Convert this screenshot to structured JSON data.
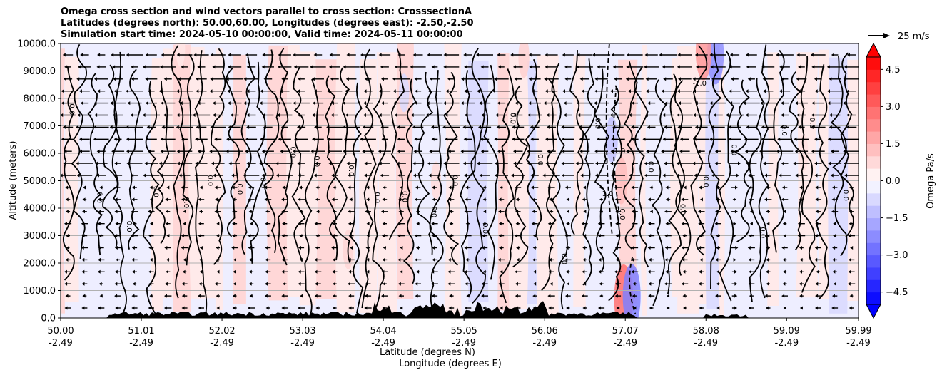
{
  "chart_data": {
    "type": "heatmap",
    "title_lines": [
      "Omega cross section and wind vectors parallel to cross section: CrosssectionA",
      "Latitudes (degrees north): 50.00,60.00, Longitudes (degrees east): -2.50,-2.50",
      "Simulation start time: 2024-05-10 00:00:00, Valid time: 2024-05-11 00:00:00"
    ],
    "ylabel": "Altitude (meters)",
    "xlabel_lat": "Latitude (degrees N)",
    "xlabel_lon": "Longitude (degrees E)",
    "ylim": [
      0,
      10000
    ],
    "y_ticks": [
      0,
      1000,
      2000,
      3000,
      4000,
      5000,
      6000,
      7000,
      8000,
      9000,
      10000
    ],
    "y_tick_labels": [
      "0.0",
      "1000.0",
      "2000.0",
      "3000.0",
      "4000.0",
      "5000.0",
      "6000.0",
      "7000.0",
      "8000.0",
      "9000.0",
      "10000.0"
    ],
    "xlim": [
      50.0,
      59.99
    ],
    "x_ticks": [
      50.0,
      51.01,
      52.02,
      53.03,
      54.04,
      55.05,
      56.06,
      57.07,
      58.08,
      59.09,
      59.99
    ],
    "x_tick_lat_labels": [
      "50.00",
      "51.01",
      "52.02",
      "53.03",
      "54.04",
      "55.05",
      "56.06",
      "57.07",
      "58.08",
      "59.09",
      "59.99"
    ],
    "x_tick_lon_labels": [
      "-2.49",
      "-2.49",
      "-2.49",
      "-2.49",
      "-2.49",
      "-2.49",
      "-2.49",
      "-2.49",
      "-2.49",
      "-2.49",
      "-2.49"
    ],
    "grid": "horizontal",
    "colorbar": {
      "label": "Omega Pa/s",
      "range": [
        -5.0,
        5.0
      ],
      "extend": "both",
      "tick_values": [
        4.5,
        3.0,
        1.5,
        0.0,
        -1.5,
        -3.0,
        -4.5
      ],
      "tick_labels": [
        "4.5",
        "3.0",
        "1.5",
        "0.0",
        "−1.5",
        "−3.0",
        "−4.5"
      ],
      "colormap": "bwr"
    },
    "quiver_key": {
      "label": "25 m/s",
      "speed": 25
    },
    "contour_labels": [
      "0.0",
      "1.0",
      "-1.0"
    ],
    "omega_features": [
      {
        "lat": 53.6,
        "alt": 2500,
        "omega": 0.8
      },
      {
        "lat": 54.3,
        "alt": 8200,
        "omega": -0.7
      },
      {
        "lat": 54.7,
        "alt": 5000,
        "omega": 0.7
      },
      {
        "lat": 55.8,
        "alt": 9500,
        "omega": 0.9
      },
      {
        "lat": 56.9,
        "alt": 6500,
        "omega": -1.2
      },
      {
        "lat": 57.02,
        "alt": 5000,
        "omega": 1.3
      },
      {
        "lat": 57.05,
        "alt": 700,
        "omega": 2.8
      },
      {
        "lat": 57.15,
        "alt": 800,
        "omega": -2.5
      },
      {
        "lat": 58.2,
        "alt": 9600,
        "omega": -2.2
      },
      {
        "lat": 58.05,
        "alt": 9700,
        "omega": 2.0
      },
      {
        "lat": 59.3,
        "alt": 6000,
        "omega": 0.6
      },
      {
        "lat": 51.5,
        "alt": 9800,
        "omega": 0.5
      }
    ]
  },
  "colors": {
    "positive": "#ff0000",
    "negative": "#0000ff",
    "neutral": "#ffffff",
    "terrain": "#000000",
    "grid": "#b0b0b0"
  }
}
